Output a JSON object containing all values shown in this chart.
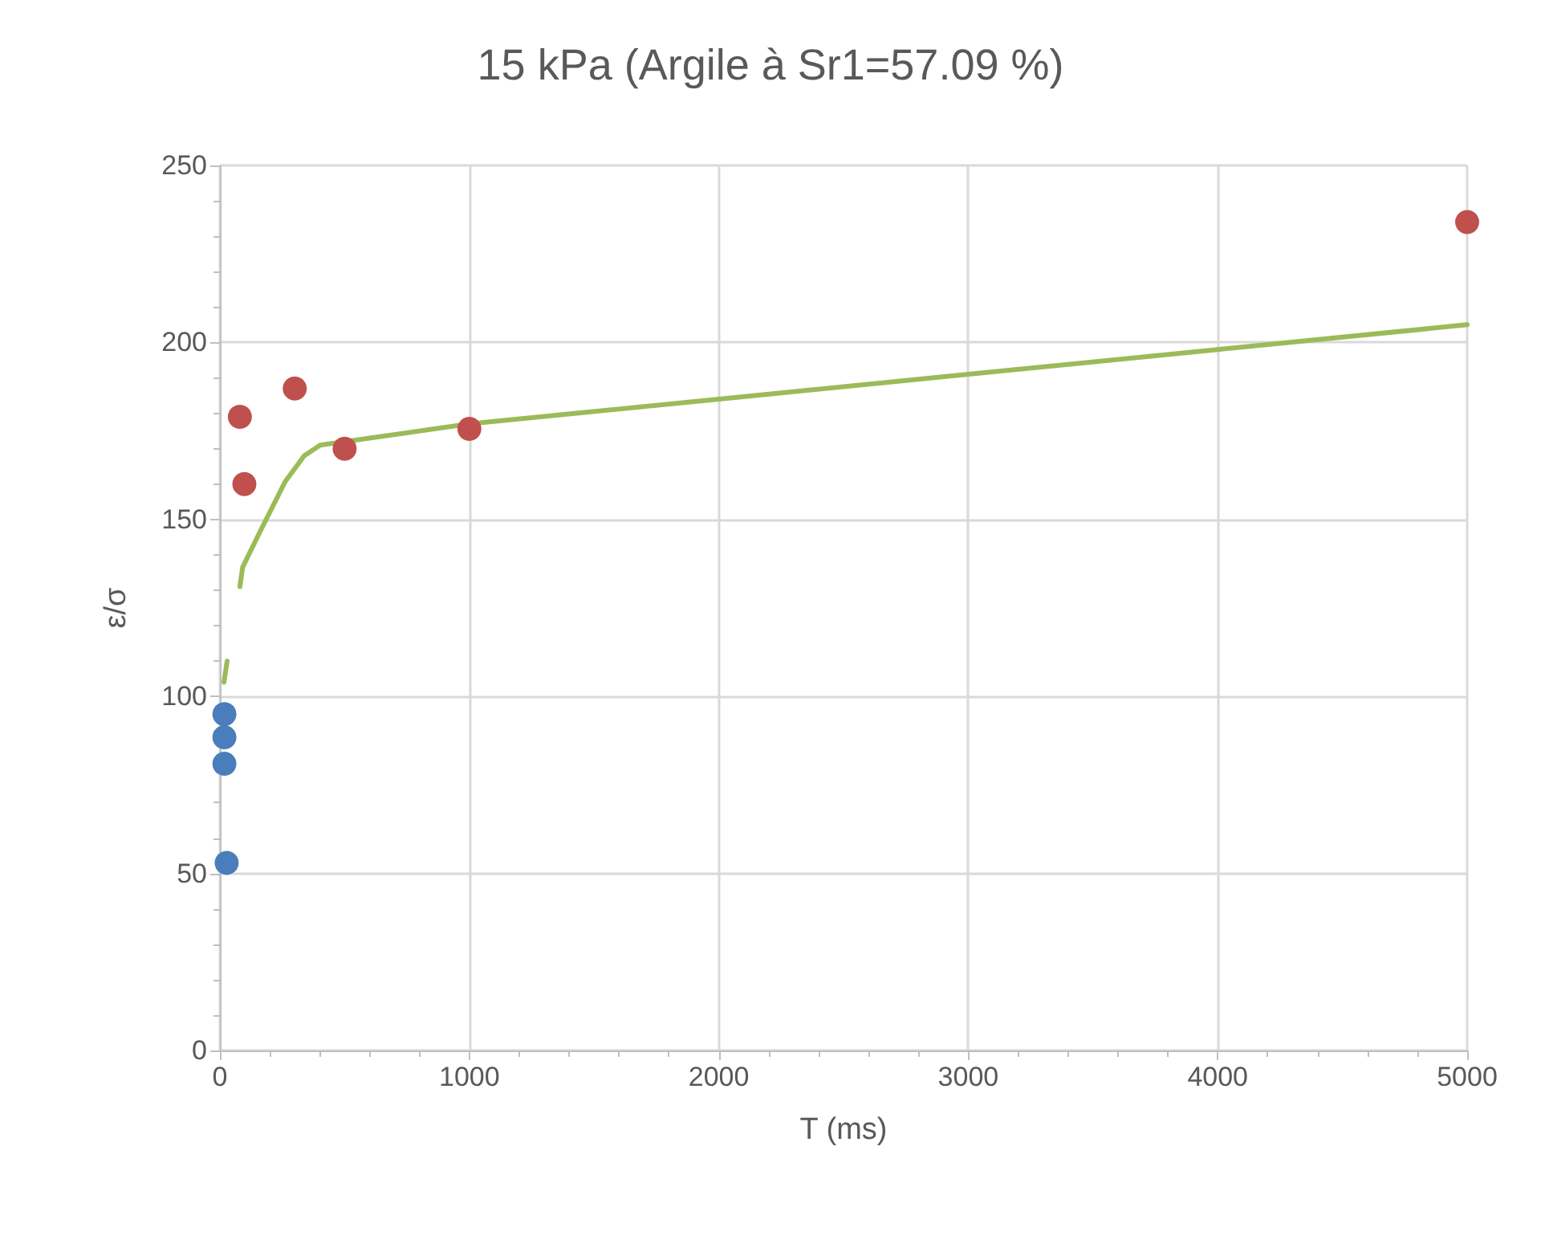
{
  "chart_data": {
    "type": "scatter",
    "title": "15 kPa (Argile à Sr1=57.09 %)",
    "xlabel": "T (ms)",
    "ylabel": "ε/σ",
    "xlim": [
      0,
      5000
    ],
    "xticks": [
      0,
      1000,
      2000,
      3000,
      4000,
      5000
    ],
    "ylim": [
      0,
      250
    ],
    "yticks": [
      0,
      50,
      100,
      150,
      200,
      250
    ],
    "grid": true,
    "marker": "circle",
    "series": [
      {
        "type": "line",
        "color": "#9bbb59",
        "marker": "none",
        "x": [
          16,
          29,
          50,
          80,
          91,
          164,
          261,
          338,
          402,
          1000,
          2000,
          3000,
          4000,
          5000
        ],
        "values": [
          104,
          110,
          null,
          131,
          136.5,
          147,
          160.6,
          168,
          171,
          177,
          184,
          191,
          198,
          205
        ]
      },
      {
        "color": "#4a7ebb",
        "x": [
          18,
          18,
          18,
          27
        ],
        "values": [
          95,
          88.5,
          81,
          53
        ]
      },
      {
        "color": "#c0504d",
        "x": [
          80,
          98,
          300,
          500,
          1000,
          5000
        ],
        "values": [
          179,
          160,
          187,
          170,
          175.6,
          234
        ]
      }
    ]
  }
}
